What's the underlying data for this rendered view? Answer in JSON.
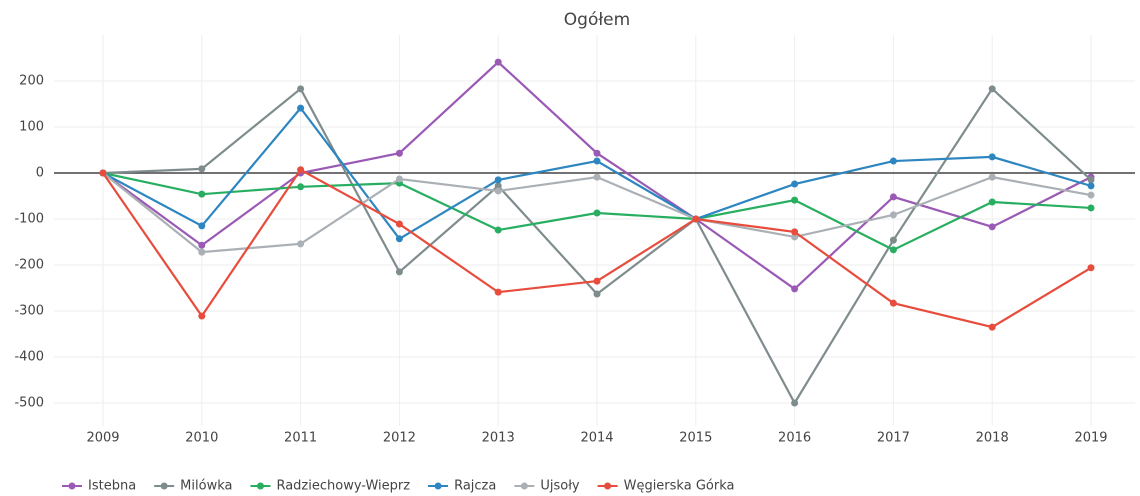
{
  "chart_data": {
    "type": "line",
    "title": "Ogółem",
    "categories": [
      "2009",
      "2010",
      "2011",
      "2012",
      "2013",
      "2014",
      "2015",
      "2016",
      "2017",
      "2018",
      "2019"
    ],
    "ylim": [
      -550,
      300
    ],
    "yticks": [
      -500,
      -400,
      -300,
      -200,
      -100,
      0,
      100,
      200
    ],
    "grid": true,
    "legend": "bottom-left",
    "series": [
      {
        "name": "Istebna",
        "color": "#9b59b6",
        "values": [
          0,
          -157,
          0,
          43,
          241,
          43,
          -100,
          -252,
          -52,
          -117,
          -9
        ]
      },
      {
        "name": "Milówka",
        "color": "#7f8c8d",
        "values": [
          0,
          9,
          183,
          -215,
          -28,
          -263,
          -100,
          -500,
          -146,
          183,
          -15
        ]
      },
      {
        "name": "Radziechowy-Wieprz",
        "color": "#27ae60",
        "values": [
          0,
          -46,
          -30,
          -22,
          -124,
          -87,
          -100,
          -59,
          -167,
          -63,
          -76
        ]
      },
      {
        "name": "Rajcza",
        "color": "#2e86c1",
        "values": [
          0,
          -115,
          141,
          -143,
          -15,
          26,
          -100,
          -24,
          26,
          35,
          -28
        ]
      },
      {
        "name": "Ujsoły",
        "color": "#aab0b5",
        "values": [
          0,
          -172,
          -154,
          -13,
          -39,
          -9,
          -100,
          -139,
          -91,
          -9,
          -48
        ]
      },
      {
        "name": "Węgierska Górka",
        "color": "#e74c3c",
        "values": [
          0,
          -311,
          7,
          -111,
          -259,
          -235,
          -100,
          -128,
          -283,
          -335,
          -206
        ]
      }
    ]
  }
}
